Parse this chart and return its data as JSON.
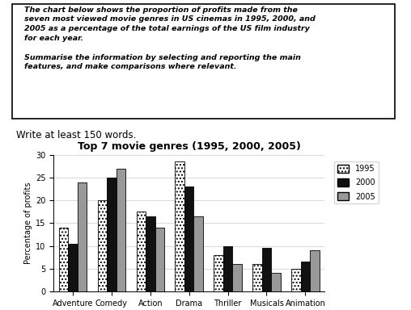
{
  "title": "Top 7 movie genres (1995, 2000, 2005)",
  "categories": [
    "Adventure",
    "Comedy",
    "Action",
    "Drama",
    "Thriller",
    "Musicals",
    "Animation"
  ],
  "years": [
    "1995",
    "2000",
    "2005"
  ],
  "values": {
    "1995": [
      14,
      20,
      17.5,
      28.5,
      8,
      6,
      5
    ],
    "2000": [
      10.5,
      25,
      16.5,
      23,
      10,
      9.5,
      6.5
    ],
    "2005": [
      24,
      27,
      14,
      16.5,
      6,
      4,
      9
    ]
  },
  "ylabel": "Percentage of profits",
  "ylim": [
    0,
    30
  ],
  "yticks": [
    0,
    5,
    10,
    15,
    20,
    25,
    30
  ],
  "background_color": "#ffffff",
  "box_text": "The chart below shows the proportion of profits made from the\nseven most viewed movie genres in US cinemas in 1995, 2000, and\n2005 as a percentage of the total earnings of the US film industry\nfor each year.\n\nSummarise the information by selecting and reporting the main\nfeatures, and make comparisons where relevant.",
  "below_box_text": "Write at least 150 words.",
  "title_fontsize": 9,
  "axis_fontsize": 7,
  "legend_fontsize": 7
}
